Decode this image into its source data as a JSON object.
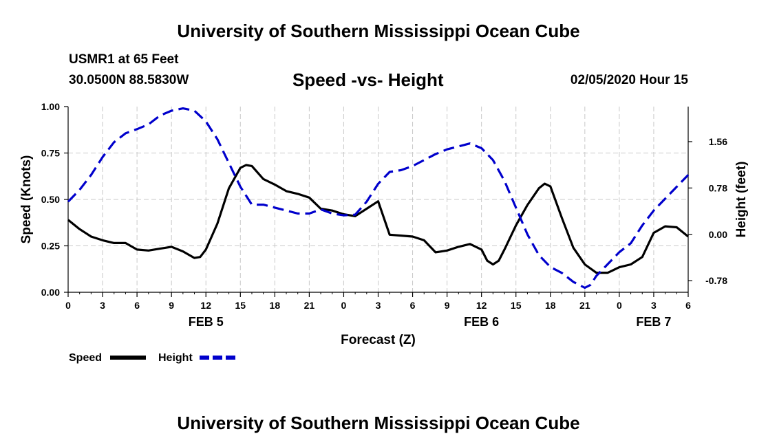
{
  "header": {
    "top_title": "University of Southern Mississippi Ocean Cube",
    "station": "USMR1 at 65 Feet",
    "coordinates": "30.0500N 88.5830W",
    "datetime": "02/05/2020 Hour 15",
    "bottom_title": "University of Southern Mississippi Ocean Cube"
  },
  "chart_data": {
    "type": "line",
    "title": "Speed -vs- Height",
    "xlabel": "Forecast (Z)",
    "ylabel": "Speed (Knots)",
    "y2label": "Height (feet)",
    "x_unit": "hours from FEB 5 00Z",
    "xlim": [
      0,
      54
    ],
    "ylim": [
      0,
      1.0
    ],
    "y2lim": [
      -0.975,
      2.15
    ],
    "x_ticks": [
      0,
      3,
      6,
      9,
      12,
      15,
      18,
      21,
      24,
      27,
      30,
      33,
      36,
      39,
      42,
      45,
      48,
      51,
      54
    ],
    "x_tick_labels": [
      "0",
      "3",
      "6",
      "9",
      "12",
      "15",
      "18",
      "21",
      "0",
      "3",
      "6",
      "9",
      "12",
      "15",
      "18",
      "21",
      "0",
      "3",
      "6"
    ],
    "date_labels": [
      {
        "x": 12,
        "label": "FEB 5"
      },
      {
        "x": 36,
        "label": "FEB 6"
      },
      {
        "x": 51,
        "label": "FEB 7"
      }
    ],
    "y_ticks": [
      0,
      0.25,
      0.5,
      0.75,
      1.0
    ],
    "y_tick_labels": [
      "0.00",
      "0.25",
      "0.50",
      "0.75",
      "1.00"
    ],
    "y2_ticks": [
      -0.78,
      0,
      0.78,
      1.56
    ],
    "y2_tick_labels": [
      "-0.78",
      "0.00",
      "0.78",
      "1.56"
    ],
    "grid": true,
    "series": [
      {
        "name": "Speed",
        "axis": "left",
        "color": "#000000",
        "style": "solid",
        "points": [
          [
            0,
            0.39
          ],
          [
            1,
            0.34
          ],
          [
            2,
            0.3
          ],
          [
            3,
            0.28
          ],
          [
            4,
            0.265
          ],
          [
            5,
            0.265
          ],
          [
            6,
            0.23
          ],
          [
            7,
            0.225
          ],
          [
            8,
            0.235
          ],
          [
            9,
            0.245
          ],
          [
            10,
            0.22
          ],
          [
            11,
            0.185
          ],
          [
            11.5,
            0.19
          ],
          [
            12,
            0.23
          ],
          [
            13,
            0.37
          ],
          [
            14,
            0.56
          ],
          [
            15,
            0.67
          ],
          [
            15.5,
            0.685
          ],
          [
            16,
            0.68
          ],
          [
            17,
            0.61
          ],
          [
            18,
            0.58
          ],
          [
            19,
            0.545
          ],
          [
            20,
            0.53
          ],
          [
            21,
            0.51
          ],
          [
            22,
            0.45
          ],
          [
            23,
            0.44
          ],
          [
            24,
            0.42
          ],
          [
            25,
            0.41
          ],
          [
            26,
            0.45
          ],
          [
            27,
            0.49
          ],
          [
            28,
            0.31
          ],
          [
            29,
            0.305
          ],
          [
            30,
            0.3
          ],
          [
            31,
            0.28
          ],
          [
            32,
            0.215
          ],
          [
            33,
            0.225
          ],
          [
            34,
            0.245
          ],
          [
            35,
            0.26
          ],
          [
            36,
            0.23
          ],
          [
            36.5,
            0.17
          ],
          [
            37,
            0.15
          ],
          [
            37.5,
            0.17
          ],
          [
            38,
            0.23
          ],
          [
            39,
            0.36
          ],
          [
            40,
            0.47
          ],
          [
            41,
            0.56
          ],
          [
            41.5,
            0.585
          ],
          [
            42,
            0.57
          ],
          [
            43,
            0.4
          ],
          [
            44,
            0.24
          ],
          [
            45,
            0.15
          ],
          [
            46,
            0.105
          ],
          [
            47,
            0.105
          ],
          [
            48,
            0.135
          ],
          [
            49,
            0.15
          ],
          [
            50,
            0.19
          ],
          [
            51,
            0.32
          ],
          [
            52,
            0.355
          ],
          [
            53,
            0.35
          ],
          [
            54,
            0.3
          ]
        ]
      },
      {
        "name": "Height",
        "axis": "right",
        "color": "#0000cc",
        "style": "dashed",
        "points": [
          [
            0,
            0.55
          ],
          [
            1,
            0.75
          ],
          [
            2,
            1.0
          ],
          [
            3,
            1.3
          ],
          [
            4,
            1.55
          ],
          [
            5,
            1.7
          ],
          [
            6,
            1.77
          ],
          [
            7,
            1.85
          ],
          [
            8,
            2.0
          ],
          [
            9,
            2.08
          ],
          [
            10,
            2.12
          ],
          [
            11,
            2.08
          ],
          [
            12,
            1.9
          ],
          [
            13,
            1.6
          ],
          [
            14,
            1.2
          ],
          [
            15,
            0.8
          ],
          [
            16,
            0.5
          ],
          [
            17,
            0.5
          ],
          [
            18,
            0.45
          ],
          [
            19,
            0.4
          ],
          [
            20,
            0.35
          ],
          [
            21,
            0.35
          ],
          [
            22,
            0.42
          ],
          [
            23,
            0.35
          ],
          [
            24,
            0.32
          ],
          [
            25,
            0.33
          ],
          [
            26,
            0.55
          ],
          [
            27,
            0.85
          ],
          [
            28,
            1.05
          ],
          [
            29,
            1.08
          ],
          [
            30,
            1.15
          ],
          [
            31,
            1.25
          ],
          [
            32,
            1.35
          ],
          [
            33,
            1.43
          ],
          [
            34,
            1.48
          ],
          [
            35,
            1.53
          ],
          [
            36,
            1.45
          ],
          [
            37,
            1.25
          ],
          [
            38,
            0.9
          ],
          [
            39,
            0.45
          ],
          [
            40,
            0.0
          ],
          [
            41,
            -0.35
          ],
          [
            42,
            -0.55
          ],
          [
            43,
            -0.65
          ],
          [
            44,
            -0.8
          ],
          [
            45,
            -0.9
          ],
          [
            45.5,
            -0.85
          ],
          [
            46,
            -0.7
          ],
          [
            47,
            -0.5
          ],
          [
            48,
            -0.3
          ],
          [
            49,
            -0.15
          ],
          [
            50,
            0.15
          ],
          [
            51,
            0.4
          ],
          [
            52,
            0.6
          ],
          [
            53,
            0.8
          ],
          [
            54,
            1.0
          ]
        ]
      }
    ],
    "legend": {
      "position": "bottom-left",
      "entries": [
        {
          "label": "Speed",
          "color": "#000000",
          "style": "solid"
        },
        {
          "label": "Height",
          "color": "#0000cc",
          "style": "dashed"
        }
      ]
    }
  }
}
